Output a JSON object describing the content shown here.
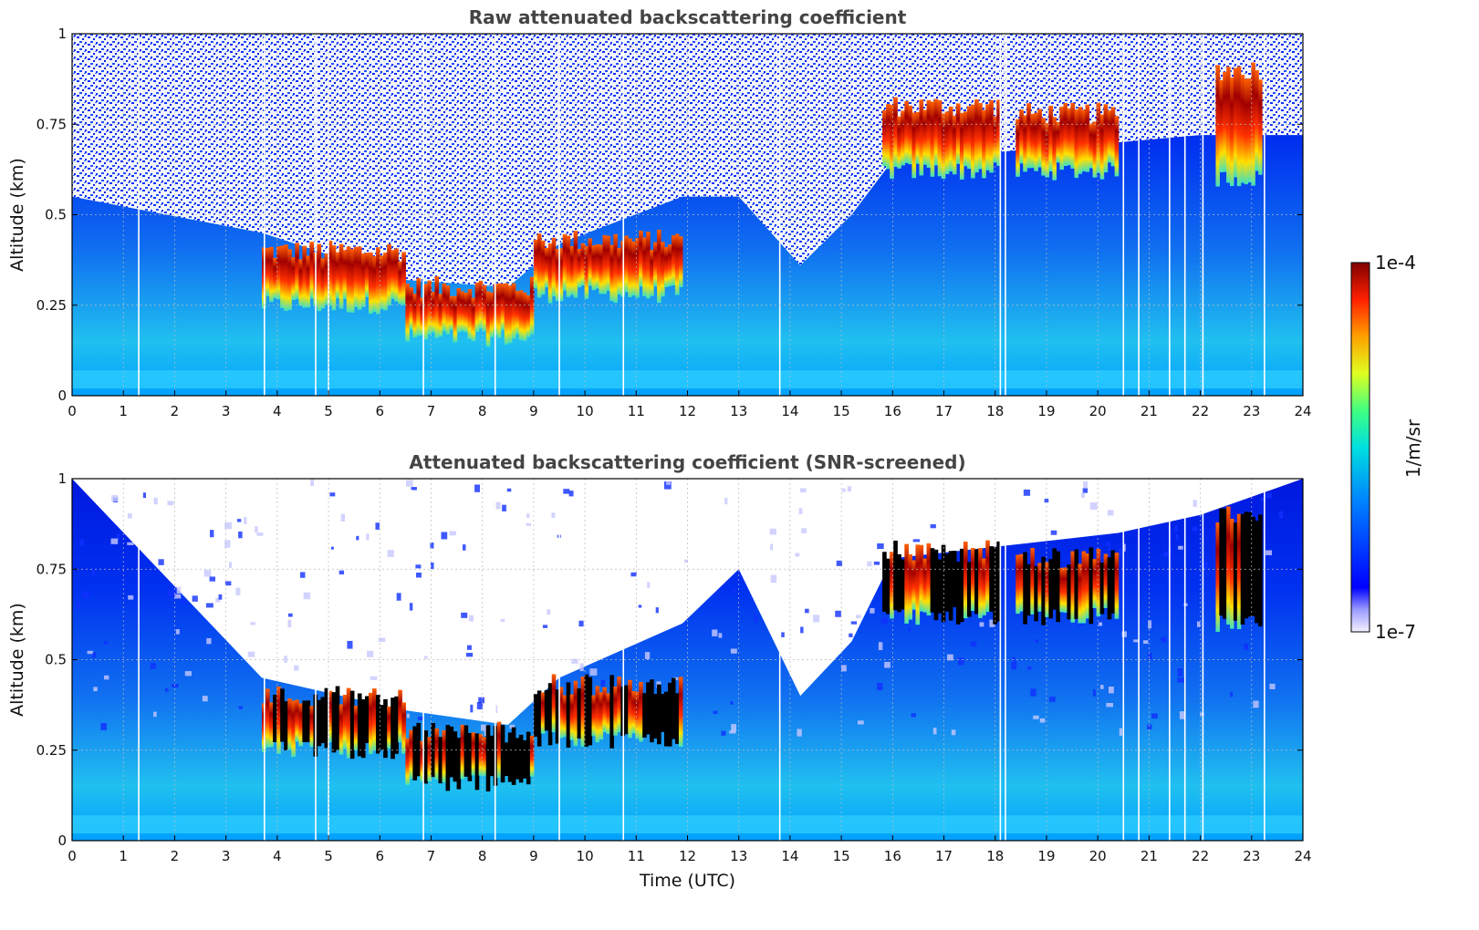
{
  "chart_data": [
    {
      "type": "heatmap",
      "title": "Raw attenuated backscattering coefficient",
      "xlabel": "",
      "ylabel": "Altitude (km)",
      "xlim": [
        0,
        24
      ],
      "ylim": [
        0,
        1
      ],
      "xticks": [
        0,
        1,
        2,
        3,
        4,
        5,
        6,
        7,
        8,
        9,
        10,
        11,
        12,
        13,
        14,
        15,
        16,
        17,
        18,
        19,
        20,
        21,
        22,
        23,
        24
      ],
      "xtick_labels": [
        "0",
        "1",
        "2",
        "3",
        "4",
        "5",
        "6",
        "7",
        "8",
        "9",
        "10",
        "11",
        "12",
        "13",
        "14",
        "15",
        "16",
        "17",
        "18",
        "19",
        "20",
        "21",
        "22",
        "23",
        "24"
      ],
      "yticks": [
        0,
        0.25,
        0.5,
        0.75,
        1
      ],
      "ytick_labels": [
        "0",
        "0.25",
        "0.5",
        "0.75",
        "1"
      ],
      "grid": true,
      "colormap": "jet",
      "cloud_layers": [
        {
          "t_start": 3.7,
          "t_end": 6.5,
          "base_km": 0.25,
          "top_km": 0.4
        },
        {
          "t_start": 6.5,
          "t_end": 9.0,
          "base_km": 0.16,
          "top_km": 0.3
        },
        {
          "t_start": 9.0,
          "t_end": 11.9,
          "base_km": 0.28,
          "top_km": 0.43
        },
        {
          "t_start": 15.8,
          "t_end": 18.1,
          "base_km": 0.62,
          "top_km": 0.8
        },
        {
          "t_start": 18.4,
          "t_end": 20.4,
          "base_km": 0.62,
          "top_km": 0.78
        },
        {
          "t_start": 22.3,
          "t_end": 23.2,
          "base_km": 0.6,
          "top_km": 0.9
        }
      ],
      "missing_data_times": [
        1.3,
        3.75,
        4.75,
        5.0,
        6.85,
        8.25,
        9.5,
        10.75,
        13.8,
        18.1,
        18.2,
        20.5,
        20.8,
        21.4,
        21.7,
        22.05,
        23.25
      ]
    },
    {
      "type": "heatmap",
      "title": "Attenuated backscattering coefficient (SNR-screened)",
      "xlabel": "Time (UTC)",
      "ylabel": "Altitude (km)",
      "xlim": [
        0,
        24
      ],
      "ylim": [
        0,
        1
      ],
      "xticks": [
        0,
        1,
        2,
        3,
        4,
        5,
        6,
        7,
        8,
        9,
        10,
        11,
        12,
        13,
        14,
        15,
        16,
        17,
        18,
        19,
        20,
        21,
        22,
        23,
        24
      ],
      "xtick_labels": [
        "0",
        "1",
        "2",
        "3",
        "4",
        "5",
        "6",
        "7",
        "8",
        "9",
        "10",
        "11",
        "12",
        "13",
        "14",
        "15",
        "16",
        "17",
        "18",
        "19",
        "20",
        "21",
        "22",
        "23",
        "24"
      ],
      "yticks": [
        0,
        0.25,
        0.5,
        0.75,
        1
      ],
      "ytick_labels": [
        "0",
        "0.25",
        "0.5",
        "0.75",
        "1"
      ],
      "grid": true,
      "colormap": "jet",
      "screened_noise_top_km": [
        [
          0,
          1.0
        ],
        [
          3.7,
          0.45
        ],
        [
          6.5,
          0.36
        ],
        [
          8.5,
          0.32
        ],
        [
          9.5,
          0.45
        ],
        [
          11.9,
          0.6
        ],
        [
          13.0,
          0.75
        ],
        [
          14.2,
          0.4
        ],
        [
          15.2,
          0.55
        ],
        [
          16.0,
          0.78
        ],
        [
          20.4,
          0.85
        ],
        [
          22.0,
          0.9
        ],
        [
          24.0,
          1.0
        ]
      ]
    }
  ],
  "colorbar": {
    "label": "1/m/sr",
    "max_label": "1e-4",
    "min_label": "1e-7",
    "min": 1e-07,
    "max": 0.0001,
    "scale": "log"
  }
}
